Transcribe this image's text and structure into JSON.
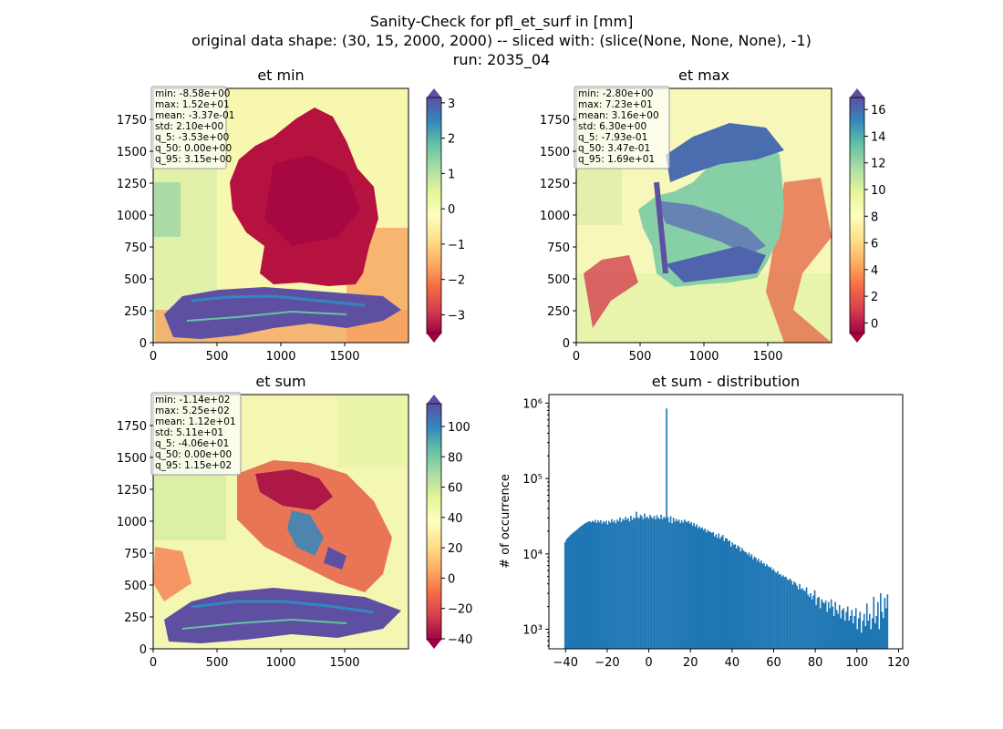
{
  "figure": {
    "suptitle_lines": [
      "Sanity-Check for pfl_et_surf in [mm]",
      "original data shape: (30, 15, 2000, 2000) -- sliced with: (slice(None, None, None), -1)",
      "run: 2035_04"
    ]
  },
  "panels": [
    {
      "title": "et min",
      "stats": [
        "min: -8.58e+00",
        "max: 1.52e+01",
        "mean: -3.37e-01",
        "std: 2.10e+00",
        "q_5: -3.53e+00",
        "q_50: 0.00e+00",
        "q_95: 3.15e+00"
      ],
      "xticks": [
        "0",
        "500",
        "1000",
        "1500"
      ],
      "yticks": [
        "0",
        "250",
        "500",
        "750",
        "1000",
        "1250",
        "1500",
        "1750"
      ],
      "colorbar": {
        "ticks": [
          "3",
          "2",
          "1",
          "0",
          "−1",
          "−2",
          "−3"
        ],
        "values": [
          3,
          2,
          1,
          0,
          -1,
          -2,
          -3
        ],
        "min": -3.53,
        "max": 3.15
      }
    },
    {
      "title": "et max",
      "stats": [
        "min: -2.80e+00",
        "max: 7.23e+01",
        "mean: 3.16e+00",
        "std: 6.30e+00",
        "q_5: -7.93e-01",
        "q_50: 3.47e-01",
        "q_95: 1.69e+01"
      ],
      "xticks": [
        "0",
        "500",
        "1000",
        "1500"
      ],
      "yticks": [
        "0",
        "250",
        "500",
        "750",
        "1000",
        "1250",
        "1500",
        "1750"
      ],
      "colorbar": {
        "ticks": [
          "16",
          "14",
          "12",
          "10",
          "8",
          "6",
          "4",
          "2",
          "0"
        ],
        "values": [
          16,
          14,
          12,
          10,
          8,
          6,
          4,
          2,
          0
        ],
        "min": -0.793,
        "max": 16.9
      }
    },
    {
      "title": "et sum",
      "stats": [
        "min: -1.14e+02",
        "max: 5.25e+02",
        "mean: 1.12e+01",
        "std: 5.11e+01",
        "q_5: -4.06e+01",
        "q_50: 0.00e+00",
        "q_95: 1.15e+02"
      ],
      "xticks": [
        "0",
        "500",
        "1000",
        "1500"
      ],
      "yticks": [
        "0",
        "250",
        "500",
        "750",
        "1000",
        "1250",
        "1500",
        "1750"
      ],
      "colorbar": {
        "ticks": [
          "100",
          "80",
          "60",
          "40",
          "20",
          "0",
          "−20",
          "−40"
        ],
        "values": [
          100,
          80,
          60,
          40,
          20,
          0,
          -20,
          -40
        ],
        "min": -40.6,
        "max": 115
      }
    }
  ],
  "chart_data": {
    "type": "bar",
    "title": "et sum - distribution",
    "xlabel": "",
    "ylabel": "# of occurrence",
    "yscale": "log",
    "xlim": [
      -48,
      122
    ],
    "ylim": [
      550,
      1300000
    ],
    "xticks": [
      "−40",
      "−20",
      "0",
      "20",
      "40",
      "60",
      "80",
      "100",
      "120"
    ],
    "xtick_values": [
      -40,
      -20,
      0,
      20,
      40,
      60,
      80,
      100,
      120
    ],
    "yticks": [
      "10³",
      "10⁴",
      "10⁵",
      "10⁶"
    ],
    "ytick_values": [
      1000,
      10000,
      100000,
      1000000
    ],
    "bin_edges_range": [
      -40.6,
      115
    ],
    "bar_color": "#1f77b4",
    "counts": [
      14200,
      15500,
      16300,
      17000,
      17800,
      18500,
      19200,
      19800,
      20500,
      21200,
      22000,
      22800,
      23500,
      24300,
      25000,
      25800,
      26200,
      26800,
      27100,
      26200,
      27500,
      26500,
      28300,
      25700,
      27800,
      26300,
      28000,
      25200,
      27200,
      26000,
      27600,
      24500,
      27400,
      25900,
      28900,
      26200,
      27800,
      25500,
      28500,
      27000,
      30500,
      26400,
      29200,
      27800,
      31000,
      28500,
      29800,
      27000,
      32000,
      28200,
      30500,
      29400,
      36200,
      30500,
      29700,
      33100,
      31500,
      28900,
      34300,
      30000,
      31200,
      29300,
      33000,
      30800,
      29600,
      31900,
      28700,
      32600,
      30100,
      29000,
      33100,
      28900,
      31000,
      29900,
      850000,
      30700,
      26200,
      31600,
      25400,
      30200,
      26700,
      29000,
      27100,
      28500,
      25600,
      27800,
      25900,
      28600,
      26900,
      26300,
      27400,
      25200,
      26500,
      23800,
      25700,
      23000,
      24700,
      21900,
      23300,
      21800,
      22400,
      20700,
      21700,
      19300,
      20800,
      19800,
      19700,
      18900,
      19500,
      17000,
      18200,
      16300,
      18600,
      15900,
      17000,
      17800,
      14800,
      16200,
      16000,
      14700,
      15100,
      12500,
      14200,
      13200,
      13400,
      11800,
      12900,
      12400,
      10800,
      12000,
      11100,
      10700,
      10500,
      9800,
      10400,
      9300,
      9900,
      8500,
      9200,
      8900,
      8100,
      8600,
      7700,
      8200,
      7400,
      7600,
      6900,
      7300,
      6900,
      6600,
      6700,
      6100,
      6300,
      5800,
      5600,
      5900,
      5300,
      5400,
      5000,
      5200,
      4900,
      5000,
      4600,
      4500,
      4700,
      4400,
      3900,
      4300,
      4100,
      3800,
      3400,
      4000,
      3400,
      3500,
      3300,
      3200,
      3600,
      2900,
      2700,
      3000,
      2500,
      2800,
      3300,
      2100,
      2600,
      2700,
      1900,
      2500,
      2300,
      2200,
      2400,
      1700,
      2300,
      1900,
      2500,
      2000,
      1500,
      2300,
      1800,
      1600,
      2100,
      1400,
      1800,
      1900,
      1300,
      1700,
      2000,
      1300,
      1500,
      1800,
      1200,
      1500,
      1900,
      1000,
      1400,
      1700,
      900,
      1300,
      1600,
      1100,
      2200,
      1300,
      1600,
      1000,
      1400,
      2700,
      1200,
      1500,
      2300,
      1000,
      3000,
      1700,
      1400,
      2600,
      1900,
      2900
    ]
  }
}
